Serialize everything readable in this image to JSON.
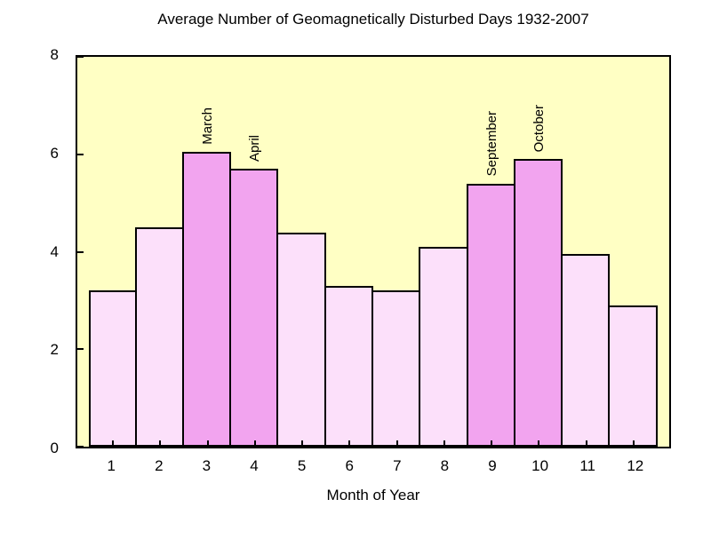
{
  "chart_data": {
    "type": "bar",
    "title": "Average Number of Geomagnetically Disturbed Days 1932-2007",
    "xlabel": "Month of Year",
    "ylabel": "",
    "categories": [
      "1",
      "2",
      "3",
      "4",
      "5",
      "6",
      "7",
      "8",
      "9",
      "10",
      "11",
      "12"
    ],
    "values": [
      3.2,
      4.5,
      6.05,
      5.7,
      4.4,
      3.3,
      3.2,
      4.1,
      5.4,
      5.9,
      3.95,
      2.9
    ],
    "ylim": [
      0,
      8
    ],
    "yticks": [
      0,
      2,
      4,
      6,
      8
    ],
    "grid": false,
    "legend": "none",
    "annotations": [
      {
        "category": "3",
        "label": "March"
      },
      {
        "category": "4",
        "label": "April"
      },
      {
        "category": "9",
        "label": "September"
      },
      {
        "category": "10",
        "label": "October"
      }
    ],
    "colors": {
      "page_background": "#FFFFFF",
      "plot_background": "#FFFFC4",
      "bar_fill": "#FCE0FA",
      "bar_highlight_fill": "#F2A4EF",
      "bar_border": "#000000",
      "axis": "#000000",
      "text": "#000000"
    }
  }
}
